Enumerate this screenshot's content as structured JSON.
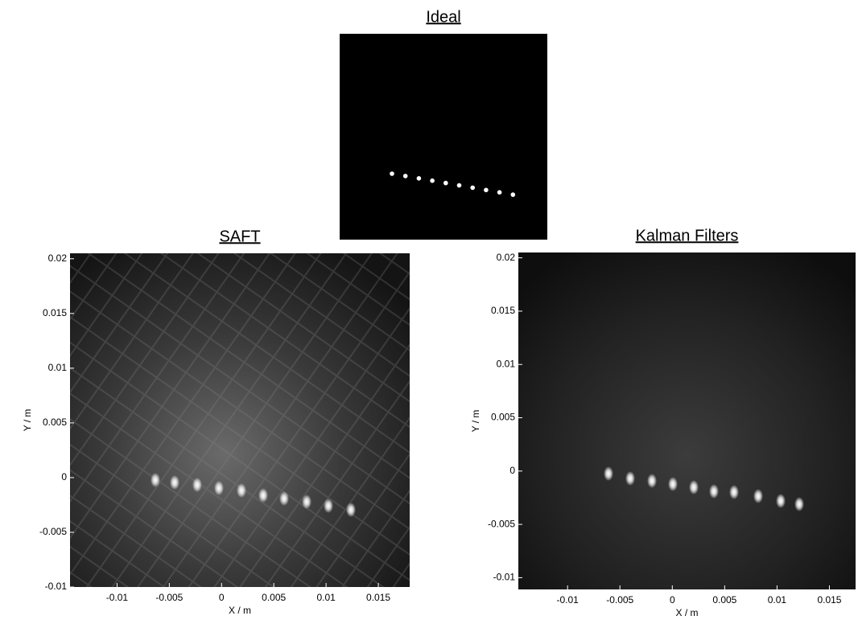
{
  "chart_data": [
    {
      "type": "image",
      "title": "Ideal"
    },
    {
      "type": "image",
      "title": "SAFT",
      "xlabel": "X / m",
      "ylabel": "Y / m",
      "xlim": [
        -0.0145,
        0.018
      ],
      "ylim": [
        -0.01,
        0.0205
      ],
      "xticks": [
        -0.01,
        -0.005,
        0,
        0.005,
        0.01,
        0.015
      ],
      "yticks": [
        -0.01,
        -0.005,
        0,
        0.005,
        0.01,
        0.015,
        0.02
      ]
    },
    {
      "type": "image",
      "title": "Kalman Filters",
      "xlabel": "X / m",
      "ylabel": "Y / m",
      "xlim": [
        -0.0147,
        0.0175
      ],
      "ylim": [
        -0.0111,
        0.0205
      ],
      "xticks": [
        -0.01,
        -0.005,
        0,
        0.005,
        0.01,
        0.015
      ],
      "yticks": [
        -0.01,
        -0.005,
        0,
        0.005,
        0.01,
        0.015,
        0.02
      ]
    }
  ]
}
